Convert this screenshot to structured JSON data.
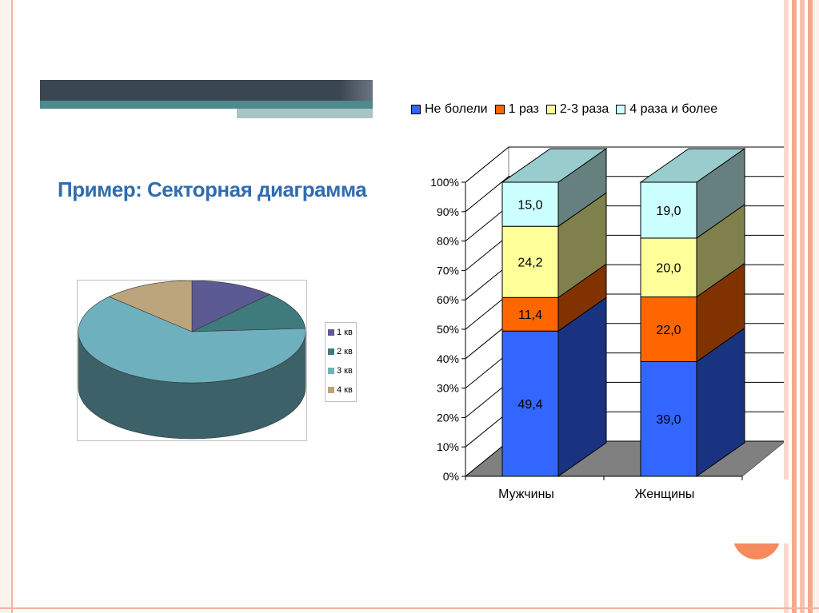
{
  "slide": {
    "title": "Пример: Секторная диаграмма"
  },
  "pie_legend": {
    "items": [
      {
        "label": "1 кв",
        "color": "#5b5a92"
      },
      {
        "label": "2 кв",
        "color": "#3f7a7c"
      },
      {
        "label": "3 кв",
        "color": "#6fb0be"
      },
      {
        "label": "4 кв",
        "color": "#bca57c"
      }
    ]
  },
  "bar_legend": {
    "items": [
      {
        "label": "Не болели",
        "color": "#3366ff"
      },
      {
        "label": "1 раз",
        "color": "#ff6600"
      },
      {
        "label": "2-3 раза",
        "color": "#ffff99"
      },
      {
        "label": "4 раза и более",
        "color": "#ccffff"
      }
    ]
  },
  "chart_data": [
    {
      "type": "pie",
      "categories": [
        "1 кв",
        "2 кв",
        "3 кв",
        "4 кв"
      ],
      "values": [
        12,
        12,
        63,
        13
      ],
      "legend": "right"
    },
    {
      "type": "bar",
      "stacked": true,
      "percent": true,
      "categories": [
        "Мужчины",
        "Женщины"
      ],
      "series": [
        {
          "name": "Не болели",
          "values": [
            49.4,
            39.0
          ],
          "labels": [
            "49,4",
            "39,0"
          ],
          "color": "#3366ff"
        },
        {
          "name": "1 раз",
          "values": [
            11.4,
            22.0
          ],
          "labels": [
            "11,4",
            "22,0"
          ],
          "color": "#ff6600"
        },
        {
          "name": "2-3 раза",
          "values": [
            24.2,
            20.0
          ],
          "labels": [
            "24,2",
            "20,0"
          ],
          "color": "#ffff99"
        },
        {
          "name": "4 раза и более",
          "values": [
            15.0,
            19.0
          ],
          "labels": [
            "15,0",
            "19,0"
          ],
          "color": "#ccffff"
        }
      ],
      "ylim": [
        0,
        100
      ],
      "yticks": [
        "0%",
        "10%",
        "20%",
        "30%",
        "40%",
        "50%",
        "60%",
        "70%",
        "80%",
        "90%",
        "100%"
      ],
      "legend": "top",
      "grid": true
    }
  ]
}
